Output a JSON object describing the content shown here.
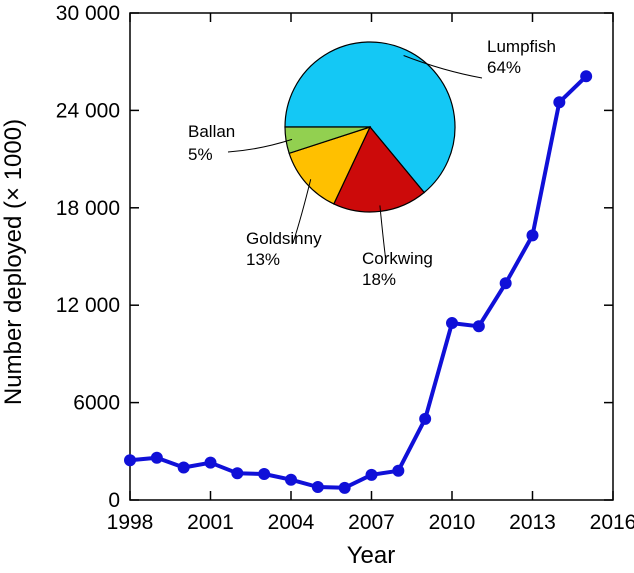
{
  "chart_data": [
    {
      "type": "line",
      "xlabel": "Year",
      "ylabel": "Number deployed (× 1000)",
      "xlim": [
        1998,
        2016
      ],
      "ylim": [
        0,
        30000
      ],
      "x_ticks": [
        1998,
        2001,
        2004,
        2007,
        2010,
        2013,
        2016
      ],
      "x_tick_labels": [
        "1998",
        "2001",
        "2004",
        "2007",
        "2010",
        "2013",
        "2016"
      ],
      "y_ticks": [
        0,
        6000,
        12000,
        18000,
        24000,
        30000
      ],
      "y_tick_labels": [
        "0",
        "6000",
        "12 000",
        "18 000",
        "24 000",
        "30 000"
      ],
      "grid": false,
      "series_color": "#1010d8",
      "x": [
        1998,
        1999,
        2000,
        2001,
        2002,
        2003,
        2004,
        2005,
        2006,
        2007,
        2008,
        2009,
        2010,
        2011,
        2012,
        2013,
        2014,
        2015
      ],
      "y": [
        2450,
        2600,
        2000,
        2300,
        1650,
        1600,
        1250,
        800,
        750,
        1550,
        1800,
        5000,
        10900,
        10700,
        13350,
        16300,
        24500,
        26100
      ]
    },
    {
      "type": "pie",
      "slices": [
        {
          "name": "Lumpfish",
          "value": 64,
          "label": "Lumpfish",
          "pct_label": "64%",
          "color": "#14c8f5"
        },
        {
          "name": "Corkwing",
          "value": 18,
          "label": "Corkwing",
          "pct_label": "18%",
          "color": "#cc0a0a"
        },
        {
          "name": "Goldsinny",
          "value": 13,
          "label": "Goldsinny",
          "pct_label": "13%",
          "color": "#ffc000"
        },
        {
          "name": "Ballan",
          "value": 5,
          "label": "Ballan",
          "pct_label": "5%",
          "color": "#92d050"
        }
      ]
    }
  ]
}
